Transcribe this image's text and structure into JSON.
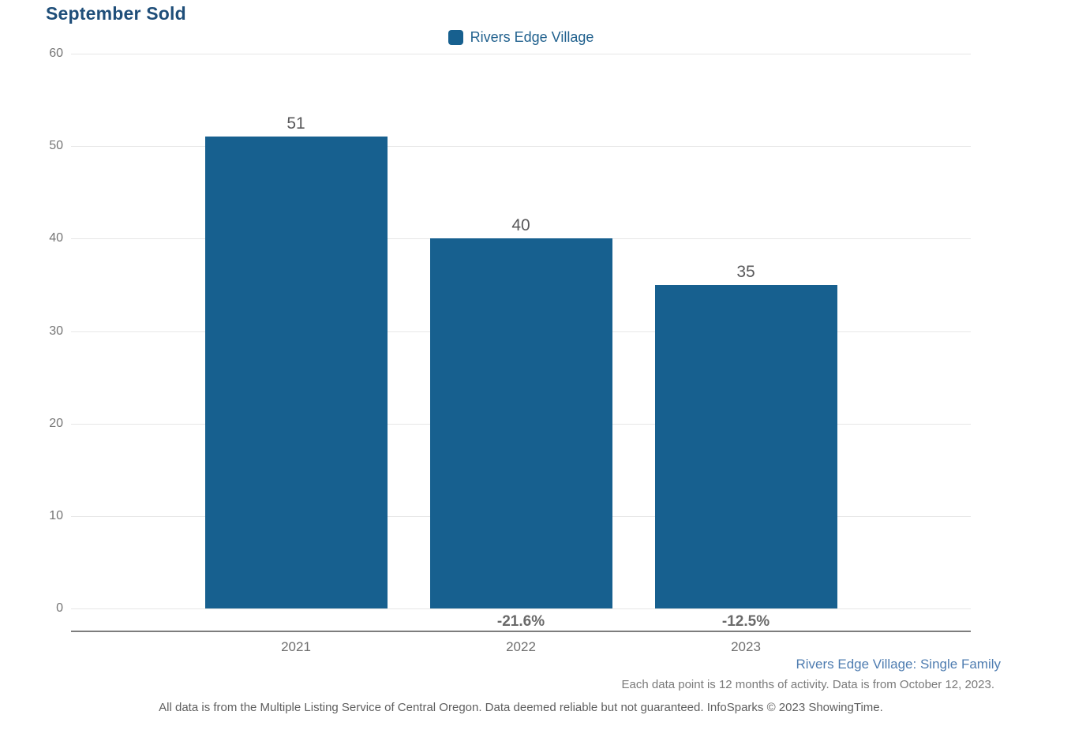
{
  "title": "September Sold",
  "legend": {
    "label": "Rivers Edge Village"
  },
  "chart_data": {
    "type": "bar",
    "title": "September Sold",
    "categories": [
      "2021",
      "2022",
      "2023"
    ],
    "series": [
      {
        "name": "Rivers Edge Village",
        "values": [
          51,
          40,
          35
        ]
      }
    ],
    "change_labels": [
      "",
      "-21.6%",
      "-12.5%"
    ],
    "xlabel": "",
    "ylabel": "",
    "ylim": [
      0,
      60
    ],
    "yticks": [
      0,
      10,
      20,
      30,
      40,
      50,
      60
    ],
    "grid": true,
    "legend_position": "top-center",
    "bar_color": "#17608F"
  },
  "footer": {
    "series_note": "Rivers Edge Village: Single Family",
    "activity_note": "Each data point is 12 months of activity. Data is from October 12, 2023.",
    "disclaimer": "All data is from the Multiple Listing Service of Central Oregon. Data deemed reliable but not guaranteed. InfoSparks © 2023 ShowingTime."
  },
  "colors": {
    "bar": "#17608F",
    "title": "#1F4E79",
    "legend_label": "#21618E",
    "footer_link": "#4E7CB0",
    "gridline": "#e7e7e7",
    "axis_line": "#7d7d7d"
  }
}
